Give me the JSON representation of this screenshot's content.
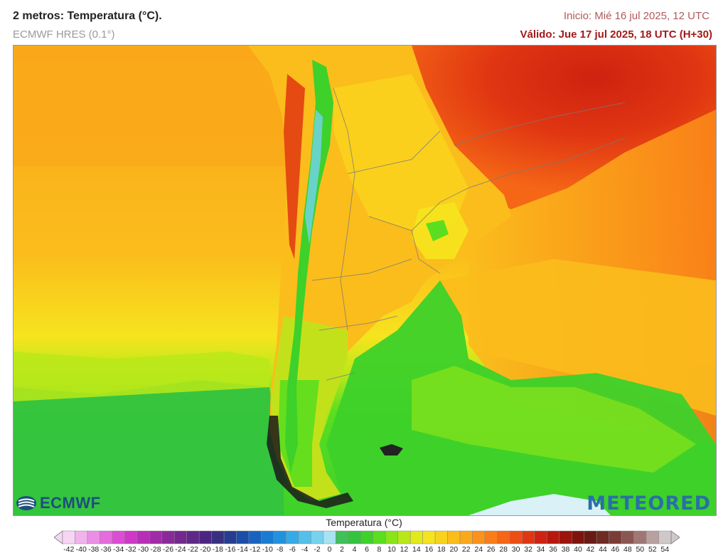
{
  "header": {
    "title": "2 metros: Temperatura (°C).",
    "model": "ECMWF HRES (0.1°)",
    "init": "Inicio: Mié 16 jul 2025, 12 UTC",
    "valid": "Válido: Jue 17 jul 2025, 18 UTC (H+30)"
  },
  "logos": {
    "left": "ECMWF",
    "right": "METEORED"
  },
  "legend": {
    "title": "Temperatura (°C)",
    "ticks": [
      "-42",
      "-40",
      "-38",
      "-36",
      "-34",
      "-32",
      "-30",
      "-28",
      "-26",
      "-24",
      "-22",
      "-20",
      "-18",
      "-16",
      "-14",
      "-12",
      "-10",
      "-8",
      "-6",
      "-4",
      "-2",
      "0",
      "2",
      "4",
      "6",
      "8",
      "10",
      "12",
      "14",
      "16",
      "18",
      "20",
      "22",
      "24",
      "26",
      "28",
      "30",
      "32",
      "34",
      "36",
      "38",
      "40",
      "42",
      "44",
      "46",
      "48",
      "50",
      "52",
      "54"
    ],
    "colors": [
      "#f7d5f5",
      "#f1b3ee",
      "#eb8fe6",
      "#e46cdd",
      "#dc4cd4",
      "#cf38c8",
      "#b82fb7",
      "#a02ba6",
      "#8a2a9a",
      "#74288f",
      "#5f2788",
      "#4b2583",
      "#38307f",
      "#263c92",
      "#1a4ea8",
      "#1863c0",
      "#1a7bd2",
      "#2193de",
      "#35aae6",
      "#52c0ea",
      "#76d3ef",
      "#a7e3f2",
      "#3fc05a",
      "#34c33f",
      "#3dd12a",
      "#5bde1f",
      "#8ae41a",
      "#b9e81a",
      "#e2ea1c",
      "#f6e41e",
      "#f9d21d",
      "#fbbd1c",
      "#fba81b",
      "#fb931a",
      "#f97d18",
      "#f56616",
      "#ed4e14",
      "#e03612",
      "#cf2210",
      "#b8170e",
      "#9c140c",
      "#7e130d",
      "#6a1a14",
      "#6e2a24",
      "#7a3c36",
      "#8a5651",
      "#a07774",
      "#b9a1a0",
      "#d0c8c8"
    ]
  }
}
